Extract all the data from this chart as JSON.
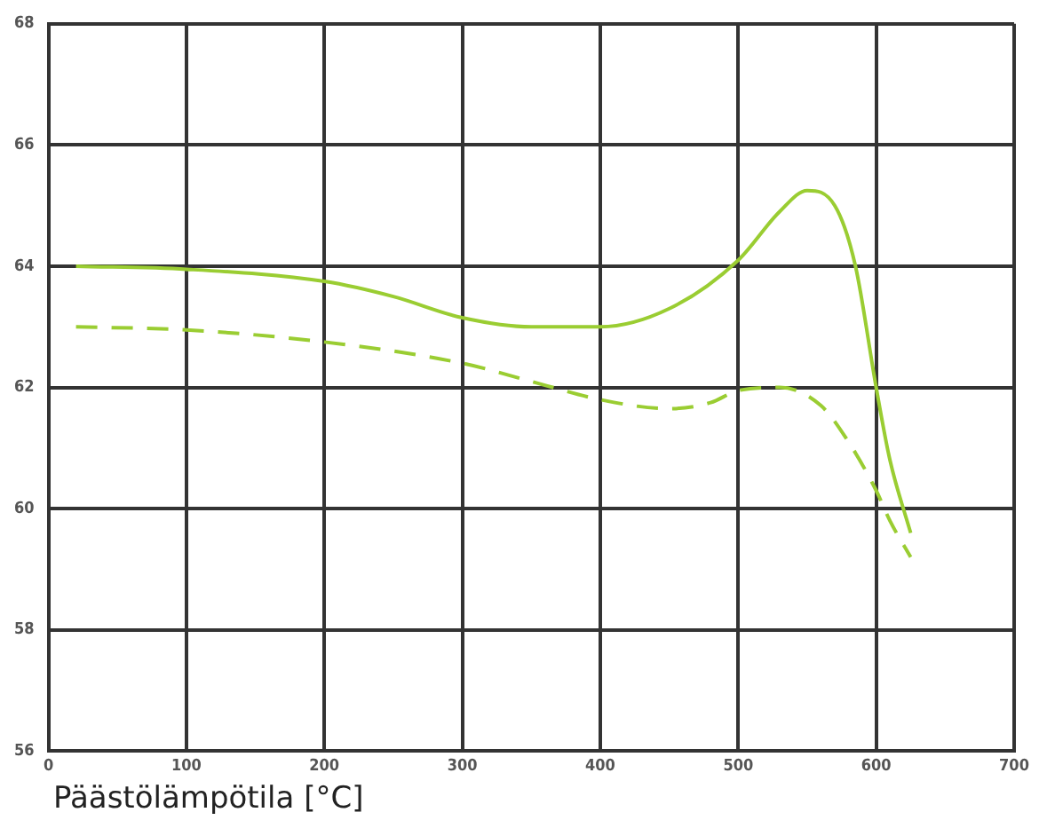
{
  "chart_data": {
    "type": "line",
    "xlabel": "Päästölämpötila [°C]",
    "xlim": [
      0,
      700
    ],
    "xticks": [
      0,
      100,
      200,
      300,
      400,
      500,
      600,
      700
    ],
    "ylim": [
      56,
      68
    ],
    "yticks": [
      56,
      58,
      60,
      62,
      64,
      66,
      68
    ],
    "grid": true,
    "legend": false,
    "marker": "none",
    "series": [
      {
        "color": "#9acd32",
        "line_style": "solid",
        "x": [
          20,
          100,
          200,
          250,
          300,
          350,
          400,
          450,
          500,
          530,
          550,
          570,
          585,
          600,
          610,
          625
        ],
        "values": [
          64.0,
          63.95,
          63.75,
          63.5,
          63.15,
          63.0,
          63.0,
          63.3,
          64.1,
          64.9,
          65.25,
          65.0,
          64.0,
          62.0,
          60.8,
          59.6
        ]
      },
      {
        "color": "#9acd32",
        "line_style": "dashed",
        "x": [
          20,
          100,
          200,
          300,
          350,
          400,
          450,
          480,
          500,
          530,
          560,
          580,
          600,
          610,
          625
        ],
        "values": [
          63.0,
          62.95,
          62.75,
          62.4,
          62.1,
          61.8,
          61.65,
          61.75,
          61.95,
          62.0,
          61.7,
          61.1,
          60.3,
          59.8,
          59.2
        ]
      }
    ]
  }
}
